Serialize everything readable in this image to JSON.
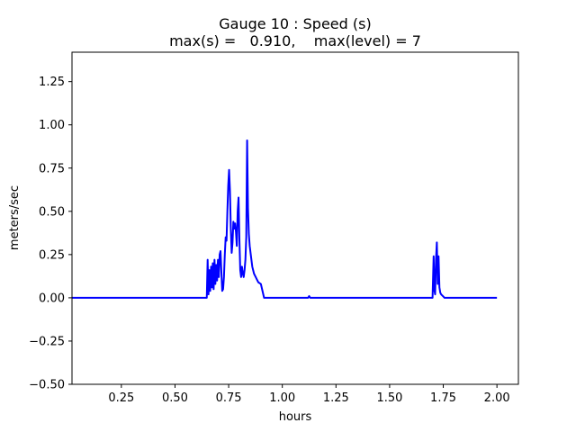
{
  "chart_data": {
    "type": "line",
    "title": "Gauge 10 : Speed (s)",
    "subtitle": "max(s) =   0.910,    max(level) = 7",
    "xlabel": "hours",
    "ylabel": "meters/sec",
    "xlim": [
      0.02,
      2.1
    ],
    "ylim": [
      -0.5,
      1.42
    ],
    "xticks": [
      0.25,
      0.5,
      0.75,
      1.0,
      1.25,
      1.5,
      1.75,
      2.0
    ],
    "xtick_labels": [
      "0.25",
      "0.50",
      "0.75",
      "1.00",
      "1.25",
      "1.50",
      "1.75",
      "2.00"
    ],
    "yticks": [
      -0.5,
      -0.25,
      0.0,
      0.25,
      0.5,
      0.75,
      1.0,
      1.25
    ],
    "ytick_labels": [
      "−0.50",
      "−0.25",
      "0.00",
      "0.25",
      "0.50",
      "0.75",
      "1.00",
      "1.25"
    ],
    "grid": false,
    "series": [
      {
        "color": "#0000ff",
        "x": [
          0.02,
          0.5,
          0.63,
          0.648,
          0.652,
          0.656,
          0.66,
          0.664,
          0.668,
          0.672,
          0.676,
          0.68,
          0.684,
          0.688,
          0.692,
          0.696,
          0.7,
          0.704,
          0.708,
          0.712,
          0.716,
          0.72,
          0.724,
          0.728,
          0.732,
          0.736,
          0.74,
          0.744,
          0.748,
          0.752,
          0.756,
          0.76,
          0.764,
          0.768,
          0.772,
          0.776,
          0.78,
          0.784,
          0.788,
          0.792,
          0.796,
          0.8,
          0.804,
          0.808,
          0.812,
          0.816,
          0.82,
          0.824,
          0.828,
          0.832,
          0.836,
          0.84,
          0.844,
          0.848,
          0.852,
          0.856,
          0.86,
          0.864,
          0.868,
          0.872,
          0.876,
          0.88,
          0.884,
          0.888,
          0.9,
          0.915,
          0.93,
          0.935,
          0.938,
          0.942,
          1.0,
          1.12,
          1.125,
          1.13,
          1.5,
          1.7,
          1.705,
          1.709,
          1.712,
          1.716,
          1.72,
          1.724,
          1.728,
          1.732,
          1.736,
          1.74,
          1.748,
          1.756,
          1.766,
          1.78,
          1.8,
          2.0
        ],
        "y": [
          0.0,
          0.0,
          0.0,
          0.0,
          0.22,
          0.02,
          0.16,
          0.04,
          0.18,
          0.06,
          0.2,
          0.05,
          0.22,
          0.08,
          0.19,
          0.1,
          0.22,
          0.12,
          0.25,
          0.27,
          0.15,
          0.04,
          0.05,
          0.12,
          0.25,
          0.35,
          0.33,
          0.5,
          0.65,
          0.74,
          0.62,
          0.4,
          0.26,
          0.32,
          0.44,
          0.4,
          0.43,
          0.38,
          0.3,
          0.5,
          0.58,
          0.34,
          0.16,
          0.12,
          0.18,
          0.14,
          0.12,
          0.16,
          0.22,
          0.35,
          0.91,
          0.52,
          0.37,
          0.3,
          0.26,
          0.22,
          0.18,
          0.16,
          0.14,
          0.13,
          0.12,
          0.11,
          0.1,
          0.09,
          0.08,
          0.0,
          0.0,
          0.0,
          0.0,
          0.0,
          0.0,
          0.0,
          0.01,
          0.0,
          0.0,
          0.0,
          0.24,
          0.04,
          0.02,
          0.22,
          0.32,
          0.08,
          0.24,
          0.06,
          0.03,
          0.02,
          0.01,
          0.0,
          0.0,
          0.0,
          0.0,
          0.0
        ]
      }
    ]
  }
}
